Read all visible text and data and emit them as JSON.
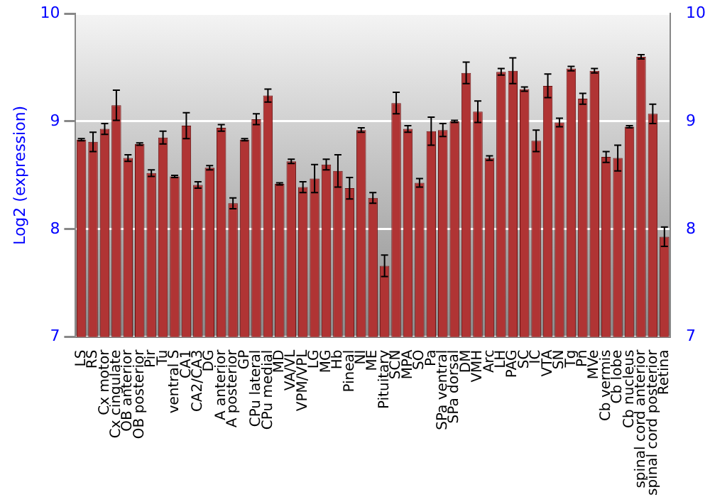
{
  "chart_data": {
    "type": "bar",
    "ylabel": "Log2 (expression)",
    "categories": [
      "LS",
      "RS",
      "Cx motor",
      "Cx cingulate",
      "OB anterior",
      "OB posterior",
      "Pir",
      "Tu",
      "ventral S",
      "CA1",
      "CA2/CA3",
      "DG",
      "A anterior",
      "A posterior",
      "GP",
      "CPu lateral",
      "CPu medial",
      "MD",
      "VA/VL",
      "VPM/VPL",
      "LG",
      "MG",
      "Hb",
      "Pineal",
      "NI",
      "ME",
      "Pituitary",
      "SCN",
      "MPA",
      "SO",
      "Pa",
      "SPa ventral",
      "SPa dorsal",
      "DM",
      "VMH",
      "Arc",
      "LH",
      "PAG",
      "SC",
      "IC",
      "VTA",
      "SN",
      "Tg",
      "Pn",
      "MVe",
      "Cb vermis",
      "Cb lobe",
      "Cb nucleus",
      "spinal cord anterior",
      "spinal cord posterior",
      "Retina"
    ],
    "values": [
      8.83,
      8.81,
      8.93,
      9.15,
      8.66,
      8.79,
      8.52,
      8.85,
      8.49,
      8.96,
      8.41,
      8.57,
      8.94,
      8.24,
      8.83,
      9.02,
      9.24,
      8.42,
      8.63,
      8.39,
      8.47,
      8.6,
      8.54,
      8.38,
      8.92,
      8.29,
      7.66,
      9.17,
      8.93,
      8.43,
      8.91,
      8.92,
      9.0,
      9.45,
      9.09,
      8.66,
      9.46,
      9.47,
      9.3,
      8.82,
      9.33,
      8.99,
      9.49,
      9.21,
      9.47,
      8.67,
      8.66,
      8.95,
      9.6,
      9.07,
      7.93
    ],
    "errors": [
      0.01,
      0.09,
      0.05,
      0.14,
      0.03,
      0.01,
      0.03,
      0.06,
      0.01,
      0.12,
      0.03,
      0.02,
      0.03,
      0.05,
      0.01,
      0.05,
      0.06,
      0.01,
      0.02,
      0.05,
      0.13,
      0.05,
      0.15,
      0.1,
      0.02,
      0.05,
      0.1,
      0.1,
      0.03,
      0.04,
      0.13,
      0.06,
      0.01,
      0.1,
      0.1,
      0.02,
      0.03,
      0.12,
      0.02,
      0.1,
      0.11,
      0.04,
      0.02,
      0.05,
      0.02,
      0.05,
      0.12,
      0.01,
      0.02,
      0.09,
      0.09
    ],
    "color": "#b03434",
    "ylim": [
      7,
      10
    ],
    "yticks": [
      7,
      8,
      9,
      10
    ],
    "y2lim": [
      7,
      10
    ],
    "y2ticks": [
      7,
      8,
      9,
      10
    ],
    "grid": "y"
  }
}
